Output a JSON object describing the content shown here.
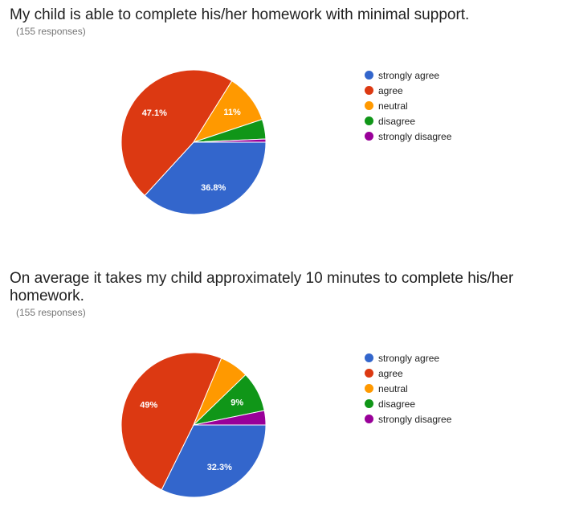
{
  "questions": [
    {
      "title": "My child is able to complete his/her homework with minimal support.",
      "responses": "(155 responses)",
      "legend": [
        "strongly agree",
        "agree",
        "neutral",
        "disagree",
        "strongly disagree"
      ]
    },
    {
      "title": "On average it takes my child approximately 10 minutes to complete his/her homework.",
      "responses": "(155 responses)",
      "legend": [
        "strongly agree",
        "agree",
        "neutral",
        "disagree",
        "strongly disagree"
      ]
    }
  ],
  "chart_data": [
    {
      "type": "pie",
      "title": "My child is able to complete his/her homework with minimal support.",
      "categories": [
        "strongly agree",
        "agree",
        "neutral",
        "disagree",
        "strongly disagree"
      ],
      "values": [
        36.8,
        47.1,
        11.0,
        4.4,
        0.7
      ],
      "data_labels": [
        "36.8%",
        "47.1%",
        "11%",
        "",
        ""
      ],
      "colors": [
        "#3366cc",
        "#dc3912",
        "#ff9900",
        "#109618",
        "#990099"
      ],
      "legend_position": "right",
      "start": "3 o'clock",
      "direction": "clockwise"
    },
    {
      "type": "pie",
      "title": "On average it takes my child approximately 10 minutes to complete his/her homework.",
      "categories": [
        "strongly agree",
        "agree",
        "neutral",
        "disagree",
        "strongly disagree"
      ],
      "values": [
        32.3,
        49.0,
        6.5,
        9.0,
        3.2
      ],
      "data_labels": [
        "32.3%",
        "49%",
        "",
        "9%",
        ""
      ],
      "colors": [
        "#3366cc",
        "#dc3912",
        "#ff9900",
        "#109618",
        "#990099"
      ],
      "legend_position": "right",
      "start": "3 o'clock",
      "direction": "clockwise"
    }
  ]
}
